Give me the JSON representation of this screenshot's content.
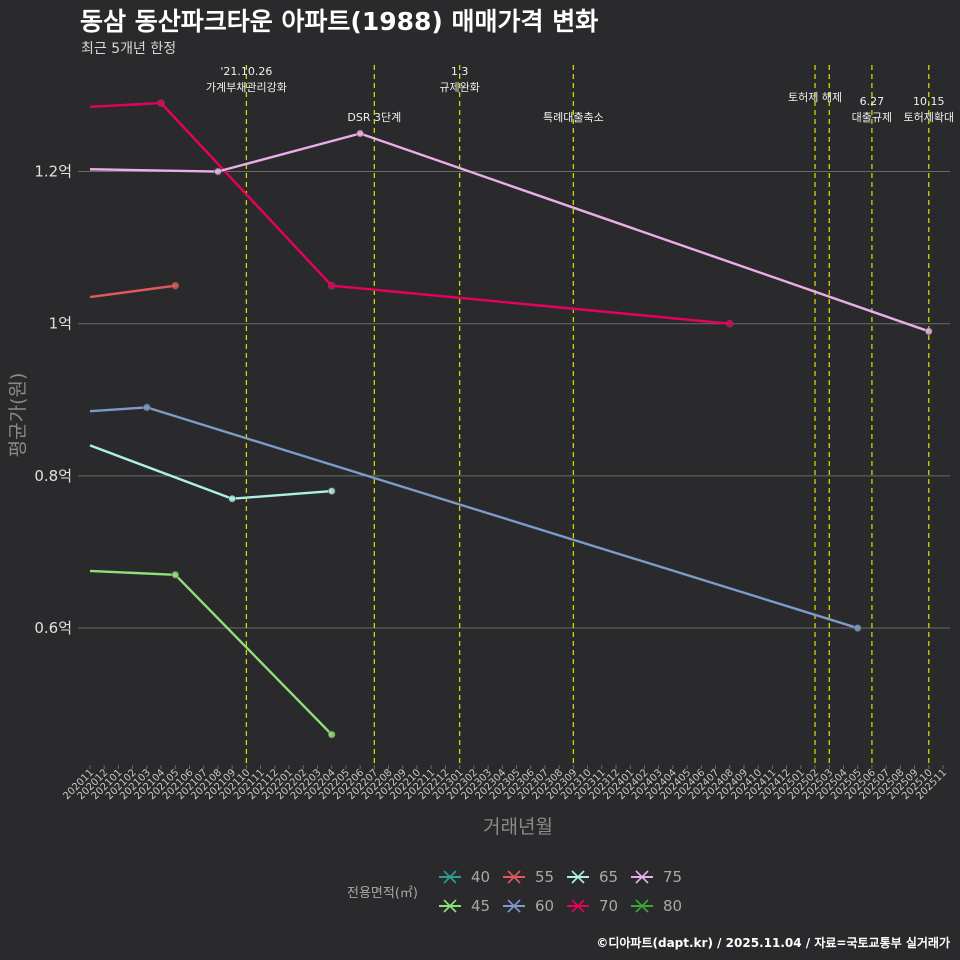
{
  "chart_data": {
    "type": "line",
    "title": "동삼 동산파크타운 아파트(1988) 매매가격 변화",
    "subtitle": "최근 5개년 한정",
    "xlabel": "거래년월",
    "ylabel": "평균가(원)",
    "caption": "©디아파트(dapt.kr) / 2025.11.04 / 자료=국토교통부 실거래가",
    "legend_title": "전용면적(㎡)",
    "x_categories": [
      "202011",
      "202012",
      "202101",
      "202102",
      "202103",
      "202104",
      "202105",
      "202106",
      "202107",
      "202108",
      "202109",
      "202110",
      "202111",
      "202112",
      "202201",
      "202202",
      "202203",
      "202204",
      "202205",
      "202206",
      "202207",
      "202208",
      "202209",
      "202210",
      "202211",
      "202212",
      "202301",
      "202302",
      "202303",
      "202304",
      "202305",
      "202306",
      "202307",
      "202308",
      "202309",
      "202310",
      "202311",
      "202312",
      "202401",
      "202402",
      "202403",
      "202404",
      "202405",
      "202406",
      "202407",
      "202408",
      "202409",
      "202410",
      "202411",
      "202412",
      "202501",
      "202502",
      "202503",
      "202504",
      "202505",
      "202506",
      "202507",
      "202508",
      "202509",
      "202510",
      "202511"
    ],
    "ylim": [
      0.42,
      1.34
    ],
    "y_ticks": [
      0.6,
      0.8,
      1.0,
      1.2
    ],
    "y_tick_labels": [
      "0.6억",
      "0.8억",
      "1억",
      "1.2억"
    ],
    "series": [
      {
        "name": "40",
        "color": "#2a9d8f",
        "points": []
      },
      {
        "name": "45",
        "color": "#8fe07a",
        "points": [
          {
            "x": "202011",
            "y": 0.675
          },
          {
            "x": "202105",
            "y": 0.67
          },
          {
            "x": "202204",
            "y": 0.46
          }
        ]
      },
      {
        "name": "55",
        "color": "#e05a5a",
        "points": [
          {
            "x": "202011",
            "y": 1.035
          },
          {
            "x": "202105",
            "y": 1.05
          }
        ]
      },
      {
        "name": "60",
        "color": "#7d9bc9",
        "points": [
          {
            "x": "202011",
            "y": 0.885
          },
          {
            "x": "202103",
            "y": 0.89
          },
          {
            "x": "202505",
            "y": 0.6
          }
        ]
      },
      {
        "name": "65",
        "color": "#aef0e6",
        "points": [
          {
            "x": "202011",
            "y": 0.84
          },
          {
            "x": "202109",
            "y": 0.77
          },
          {
            "x": "202204",
            "y": 0.78
          }
        ]
      },
      {
        "name": "70",
        "color": "#e8005f",
        "points": [
          {
            "x": "202011",
            "y": 1.285
          },
          {
            "x": "202104",
            "y": 1.29
          },
          {
            "x": "202204",
            "y": 1.05
          },
          {
            "x": "202408",
            "y": 1.0
          }
        ]
      },
      {
        "name": "75",
        "color": "#eaaee8",
        "points": [
          {
            "x": "202011",
            "y": 1.203
          },
          {
            "x": "202108",
            "y": 1.2
          },
          {
            "x": "202206",
            "y": 1.25
          },
          {
            "x": "202510",
            "y": 0.99
          }
        ]
      },
      {
        "name": "80",
        "color": "#3aa83a",
        "points": []
      }
    ],
    "annotations": [
      {
        "x": "202110",
        "lines": [
          "'21.10.26",
          "가계부채관리강화"
        ],
        "row": 0
      },
      {
        "x": "202207",
        "lines": [
          "DSR 3단계"
        ],
        "row": 1
      },
      {
        "x": "202301",
        "lines": [
          "1.3",
          "규제완화"
        ],
        "row": 0
      },
      {
        "x": "202309",
        "lines": [
          "특례대출축소"
        ],
        "row": 1
      },
      {
        "x": "202502",
        "lines": [
          "토허제 해제"
        ],
        "row": 0
      },
      {
        "x": "202503",
        "lines": [],
        "row": 0
      },
      {
        "x": "202506",
        "lines": [
          "6.27",
          "대출규제"
        ],
        "row": 1
      },
      {
        "x": "202510",
        "lines": [
          "10.15",
          "토허제확대"
        ],
        "row": 1
      }
    ]
  }
}
